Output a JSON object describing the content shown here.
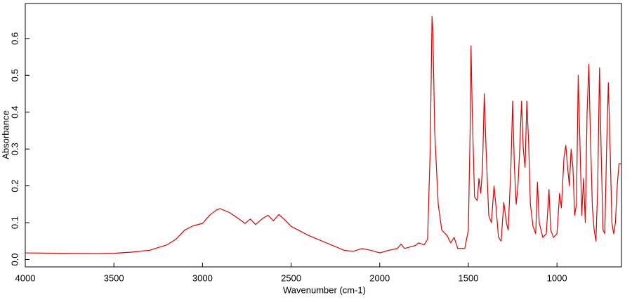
{
  "chart_data": {
    "type": "line",
    "x_label": "Wavenumber (cm-1)",
    "y_label": "Absorbance",
    "color": "#e00000",
    "x": [
      4000,
      3800,
      3600,
      3500,
      3400,
      3300,
      3200,
      3150,
      3100,
      3050,
      3000,
      2960,
      2920,
      2900,
      2850,
      2800,
      2760,
      2730,
      2700,
      2660,
      2630,
      2600,
      2570,
      2540,
      2500,
      2400,
      2300,
      2200,
      2150,
      2100,
      2050,
      2000,
      1950,
      1900,
      1880,
      1860,
      1800,
      1780,
      1750,
      1730,
      1715,
      1705,
      1700,
      1690,
      1670,
      1650,
      1620,
      1600,
      1580,
      1560,
      1520,
      1500,
      1490,
      1485,
      1478,
      1465,
      1450,
      1440,
      1430,
      1420,
      1410,
      1400,
      1385,
      1370,
      1355,
      1345,
      1330,
      1315,
      1300,
      1285,
      1275,
      1260,
      1250,
      1240,
      1230,
      1220,
      1210,
      1200,
      1190,
      1180,
      1170,
      1160,
      1150,
      1135,
      1120,
      1110,
      1100,
      1080,
      1060,
      1045,
      1035,
      1020,
      1000,
      985,
      975,
      960,
      950,
      940,
      930,
      920,
      910,
      900,
      890,
      880,
      872,
      860,
      850,
      840,
      830,
      820,
      812,
      800,
      790,
      780,
      770,
      760,
      750,
      740,
      730,
      720,
      710,
      700,
      690,
      680,
      670,
      660,
      650,
      640
    ],
    "values": [
      0.018,
      0.017,
      0.016,
      0.017,
      0.02,
      0.025,
      0.04,
      0.055,
      0.08,
      0.092,
      0.098,
      0.12,
      0.135,
      0.138,
      0.128,
      0.112,
      0.098,
      0.11,
      0.095,
      0.112,
      0.12,
      0.105,
      0.122,
      0.11,
      0.09,
      0.065,
      0.045,
      0.025,
      0.022,
      0.03,
      0.025,
      0.018,
      0.025,
      0.03,
      0.042,
      0.03,
      0.038,
      0.045,
      0.04,
      0.055,
      0.3,
      0.66,
      0.62,
      0.35,
      0.15,
      0.08,
      0.065,
      0.045,
      0.06,
      0.03,
      0.03,
      0.08,
      0.35,
      0.58,
      0.4,
      0.17,
      0.16,
      0.22,
      0.18,
      0.25,
      0.45,
      0.3,
      0.12,
      0.1,
      0.2,
      0.15,
      0.06,
      0.05,
      0.155,
      0.1,
      0.08,
      0.25,
      0.43,
      0.25,
      0.15,
      0.2,
      0.3,
      0.43,
      0.3,
      0.25,
      0.43,
      0.32,
      0.15,
      0.09,
      0.07,
      0.21,
      0.1,
      0.06,
      0.07,
      0.19,
      0.08,
      0.06,
      0.07,
      0.18,
      0.14,
      0.28,
      0.31,
      0.25,
      0.2,
      0.3,
      0.25,
      0.12,
      0.15,
      0.5,
      0.35,
      0.12,
      0.22,
      0.1,
      0.4,
      0.53,
      0.35,
      0.14,
      0.08,
      0.05,
      0.2,
      0.52,
      0.28,
      0.08,
      0.07,
      0.3,
      0.48,
      0.3,
      0.1,
      0.07,
      0.1,
      0.2,
      0.26,
      0.26
    ],
    "xlim": [
      4000,
      636
    ],
    "xticks": [
      4000,
      3500,
      3000,
      2500,
      2000,
      1500,
      1000
    ],
    "ylim": [
      -0.02,
      0.695
    ],
    "yticks": [
      {
        "value": 0,
        "label": "0.0"
      },
      0.1,
      0.2,
      0.3,
      0.4,
      0.5,
      0.6
    ]
  }
}
